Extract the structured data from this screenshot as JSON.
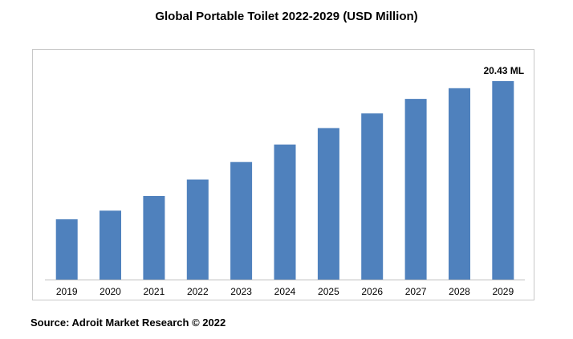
{
  "chart_data": {
    "type": "bar",
    "title": "Global Portable Toilet 2022-2029 (USD Million)",
    "xlabel": "",
    "ylabel": "",
    "categories": [
      "2019",
      "2020",
      "2021",
      "2022",
      "2023",
      "2024",
      "2025",
      "2026",
      "2027",
      "2028",
      "2029"
    ],
    "values": [
      6.2,
      7.1,
      8.6,
      10.3,
      12.1,
      13.9,
      15.6,
      17.1,
      18.6,
      19.7,
      20.43
    ],
    "ylim": [
      0,
      22
    ],
    "data_labels": [
      {
        "category": "2029",
        "text": "20.43 ML"
      }
    ],
    "grid": false,
    "legend": "none",
    "bar_color": "#4f81bd",
    "source": "Source: Adroit Market Research © 2022"
  }
}
